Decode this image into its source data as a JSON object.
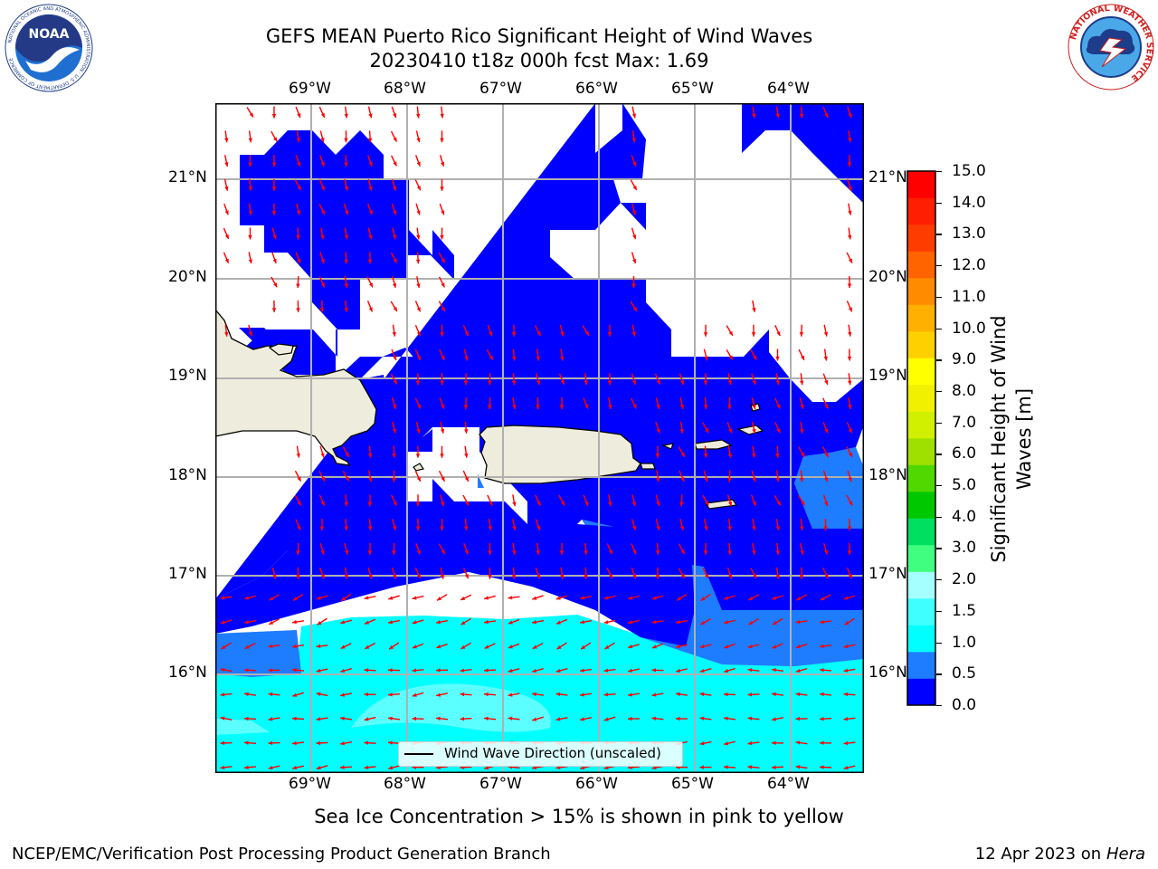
{
  "header": {
    "title_line1": "GEFS MEAN Puerto Rico Significant Height of Wind Waves",
    "title_line2": "20230410 t18z 000h fcst   Max: 1.69"
  },
  "logos": {
    "left": {
      "name": "noaa-logo",
      "text": "NOAA",
      "ring_text": "NATIONAL OCEANIC AND ATMOSPHERIC ADMINISTRATION · U.S. DEPARTMENT OF COMMERCE"
    },
    "right": {
      "name": "nws-logo",
      "ring_text": "NATIONAL WEATHER SERVICE"
    }
  },
  "map": {
    "lon_labels": [
      "69°W",
      "68°W",
      "67°W",
      "66°W",
      "65°W",
      "64°W"
    ],
    "lat_labels": [
      "21°N",
      "20°N",
      "19°N",
      "18°N",
      "17°N",
      "16°N"
    ],
    "colors": {
      "land": "#eeecdc",
      "coast": "#000000",
      "grid": "#b0b0b0",
      "arrow": "#ff0000",
      "band_0_05": "#0000ff",
      "band_05_1": "#1e7cff",
      "band_1_15": "#00ffff",
      "band_15_2": "#5cffff"
    },
    "legend_label": "Wind Wave Direction (unscaled)"
  },
  "colorbar": {
    "label": "Significant Height of Wind Waves [m]",
    "ticks": [
      "15.0",
      "14.0",
      "13.0",
      "12.0",
      "11.0",
      "10.0",
      "9.0",
      "8.0",
      "7.0",
      "6.0",
      "5.0",
      "4.0",
      "3.0",
      "2.0",
      "1.5",
      "1.0",
      "0.5",
      "0.0"
    ],
    "colors_bottom_to_top": [
      "#0000ff",
      "#1e7cff",
      "#00ffff",
      "#40ffff",
      "#a6ffff",
      "#40ff80",
      "#00e060",
      "#00c800",
      "#50d800",
      "#a0e000",
      "#d0f000",
      "#f0f000",
      "#ffff00",
      "#ffd000",
      "#ffb000",
      "#ff8c00",
      "#ff6400",
      "#ff3c00",
      "#ff1e00",
      "#ff0000"
    ]
  },
  "notes": {
    "sea_ice": "Sea Ice Concentration > 15% is shown in pink to yellow"
  },
  "footer": {
    "left": "NCEP/EMC/Verification Post Processing Product Generation Branch",
    "right_date": "12 Apr 2023 on ",
    "right_machine": "Hera"
  }
}
